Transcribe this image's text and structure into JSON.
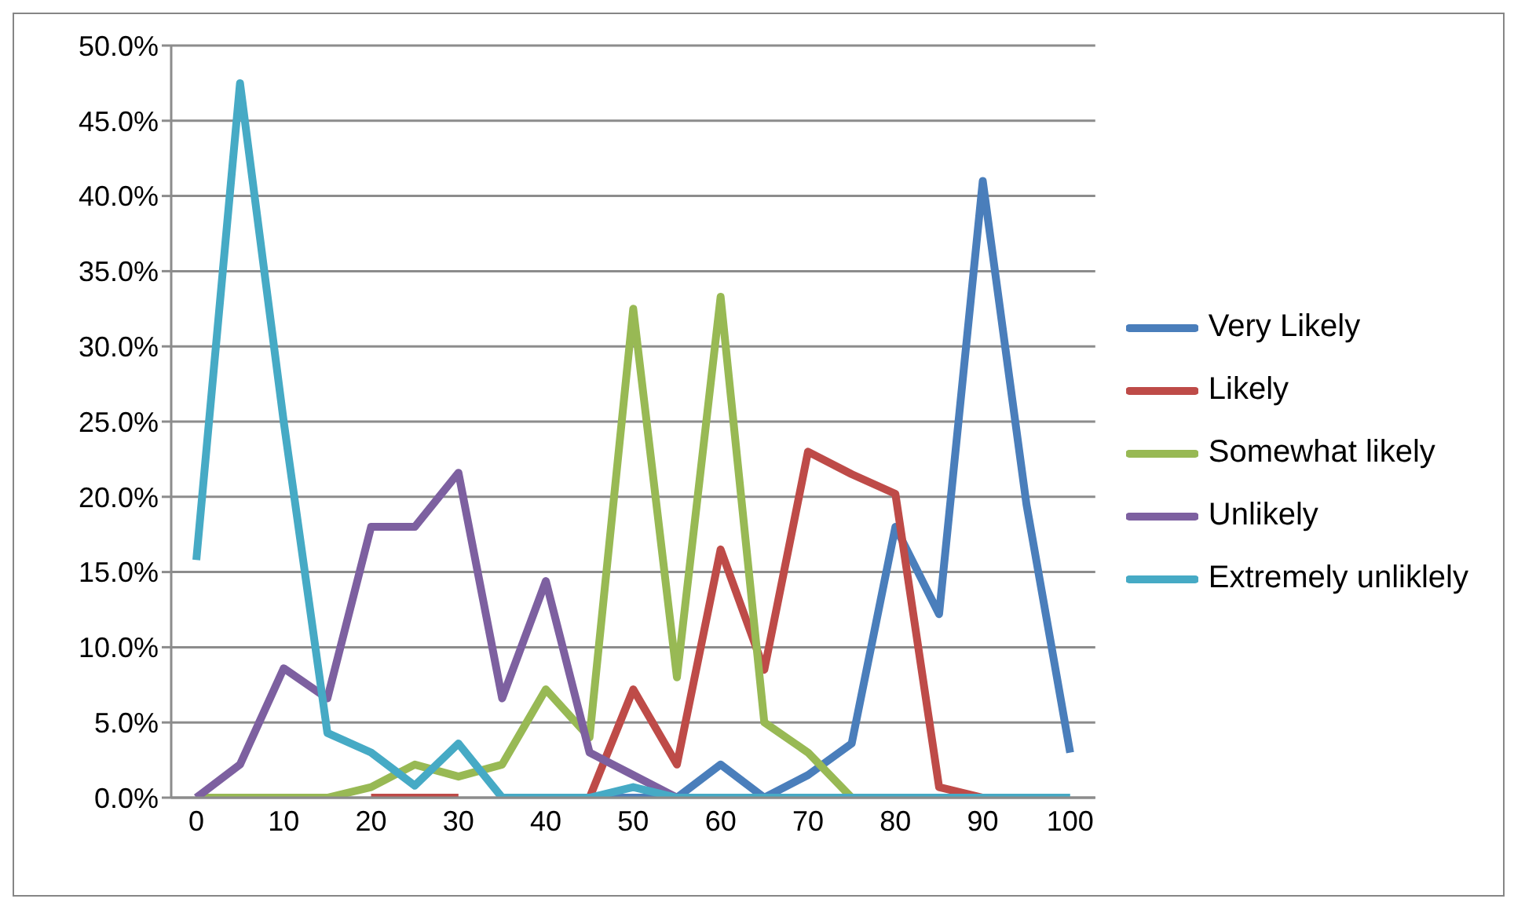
{
  "chart_data": {
    "type": "line",
    "categories": [
      "0",
      null,
      "10",
      null,
      "20",
      null,
      "30",
      null,
      "40",
      null,
      "50",
      null,
      "60",
      null,
      "70",
      null,
      "80",
      null,
      "90",
      null,
      "100"
    ],
    "ylim": [
      0,
      50
    ],
    "yticks": [
      {
        "value": 0,
        "label": "0.0%"
      },
      {
        "value": 5,
        "label": "5.0%"
      },
      {
        "value": 10,
        "label": "10.0%"
      },
      {
        "value": 15,
        "label": "15.0%"
      },
      {
        "value": 20,
        "label": "20.0%"
      },
      {
        "value": 25,
        "label": "25.0%"
      },
      {
        "value": 30,
        "label": "30.0%"
      },
      {
        "value": 35,
        "label": "35.0%"
      },
      {
        "value": 40,
        "label": "40.0%"
      },
      {
        "value": 45,
        "label": "45.0%"
      },
      {
        "value": 50,
        "label": "50.0%"
      }
    ],
    "grid": "y",
    "legend": "right",
    "marker": "none",
    "series": [
      {
        "name": "Very Likely",
        "color": "#4a7ebb",
        "values": [
          null,
          null,
          null,
          null,
          null,
          null,
          null,
          null,
          null,
          0,
          0,
          0,
          2.2,
          0,
          1.5,
          3.6,
          18,
          12.2,
          41,
          19.5,
          3
        ]
      },
      {
        "name": "Likely",
        "color": "#be4b48",
        "values": [
          null,
          null,
          null,
          null,
          0,
          0,
          0,
          null,
          null,
          0,
          7.2,
          2.2,
          16.5,
          8.5,
          23,
          21.5,
          20.2,
          0.7,
          0,
          null,
          null
        ]
      },
      {
        "name": "Somewhat likely",
        "color": "#98b954",
        "values": [
          0,
          0,
          0,
          0,
          0.7,
          2.2,
          1.4,
          2.2,
          7.2,
          4,
          32.5,
          8,
          33.3,
          5,
          3,
          0,
          null,
          null,
          null,
          null,
          null
        ]
      },
      {
        "name": "Unlikely",
        "color": "#7d60a0",
        "values": [
          0,
          2.2,
          8.6,
          6.6,
          18,
          18,
          21.6,
          6.6,
          14.4,
          3,
          1.5,
          0,
          null,
          null,
          null,
          null,
          null,
          null,
          null,
          null,
          null
        ]
      },
      {
        "name": "Extremely unliklely",
        "color": "#46aac5",
        "values": [
          15.8,
          47.5,
          25,
          4.3,
          3,
          0.8,
          3.6,
          0,
          0,
          0,
          0.7,
          0,
          0,
          0,
          0,
          0,
          0,
          0,
          0,
          0,
          0
        ]
      }
    ]
  }
}
